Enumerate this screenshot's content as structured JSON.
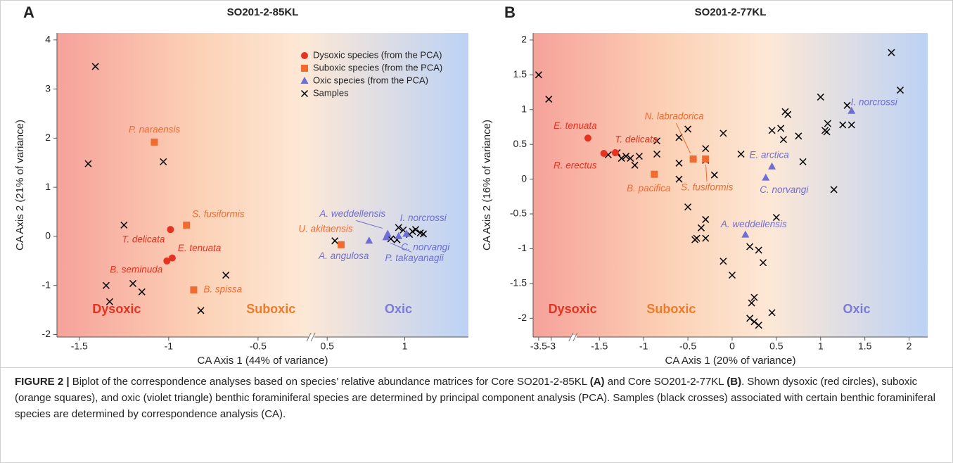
{
  "chart_data": [
    {
      "type": "scatter",
      "panel": "A",
      "title": "SO201-2-85KL",
      "xlabel": "CA Axis 1 (44% of variance)",
      "ylabel": "CA Axis 2 (21% of variance)",
      "xlim": [
        -1.625,
        1.41
      ],
      "xbreak": [
        -0.2,
        0.4
      ],
      "xticks": [
        -1.5,
        -1,
        -0.5,
        0.5,
        1
      ],
      "ylim": [
        -2.05,
        4.14
      ],
      "yticks": [
        -2,
        -1,
        0,
        1,
        2,
        3,
        4
      ],
      "legend": "upper right",
      "regions": [
        {
          "label": "Dysoxic",
          "color": "#e53321"
        },
        {
          "label": "Suboxic",
          "color": "#f07a28"
        },
        {
          "label": "Oxic",
          "color": "#7b7bd6"
        }
      ],
      "series": [
        {
          "name": "Dysoxic species (from the PCA)",
          "marker": "circle",
          "color": "#e53321",
          "x": [
            -0.99,
            -0.98,
            -1.01
          ],
          "values": [
            0.14,
            -0.44,
            -0.5
          ],
          "labels": [
            "T. delicata",
            "E. tenuata",
            "B. seminuda"
          ]
        },
        {
          "name": "Suboxic species (from the PCA)",
          "marker": "square",
          "color": "#f26a30",
          "x": [
            -1.08,
            -0.9,
            -0.86,
            0.59
          ],
          "values": [
            1.92,
            0.23,
            -1.09,
            -0.17
          ],
          "labels": [
            "P. naraensis",
            "S. fusiformis",
            "B. spissa",
            "U. akitaensis"
          ]
        },
        {
          "name": "Oxic species (from the PCA)",
          "marker": "triangle",
          "color": "#6e6ed6",
          "x": [
            0.77,
            0.89,
            0.88,
            0.96,
            1.01
          ],
          "values": [
            -0.09,
            0.05,
            -0.02,
            0.0,
            0.05
          ],
          "labels": [
            "A. angulosa",
            "A. weddellensis",
            "P. takayanagii",
            "C. norvangi",
            "I. norcrossi"
          ]
        },
        {
          "name": "Samples",
          "marker": "x",
          "color": "#000000",
          "x": [
            -1.41,
            -1.45,
            -1.03,
            -1.25,
            -1.35,
            -1.33,
            -1.2,
            -1.15,
            -0.68,
            -0.82,
            0.55,
            0.96,
            0.99,
            1.03,
            1.05,
            1.07,
            1.1,
            1.12,
            0.91,
            0.95
          ],
          "values": [
            3.46,
            1.48,
            1.52,
            0.23,
            -1.0,
            -1.33,
            -0.96,
            -1.13,
            -0.79,
            -1.51,
            -0.09,
            0.18,
            0.13,
            0.04,
            0.1,
            0.14,
            0.07,
            0.05,
            -0.05,
            -0.07
          ]
        }
      ]
    },
    {
      "type": "scatter",
      "panel": "B",
      "title": "SO201-2-77KL",
      "xlabel": "CA Axis 1 (20% of variance)",
      "ylabel": "CA Axis 2 (16% of variance)",
      "xlim": [
        -3.72,
        2.21
      ],
      "xbreak": [
        -2.11,
        -1.79
      ],
      "xticks": [
        -3.5,
        -3,
        -1.5,
        -1,
        -0.5,
        0,
        0.5,
        1,
        1.5,
        2
      ],
      "ylim": [
        -2.27,
        2.1
      ],
      "yticks": [
        -2,
        -1.5,
        -1,
        -0.5,
        0,
        0.5,
        1,
        1.5,
        2
      ],
      "regions": [
        {
          "label": "Dysoxic",
          "color": "#e53321"
        },
        {
          "label": "Suboxic",
          "color": "#f07a28"
        },
        {
          "label": "Oxic",
          "color": "#7b7bd6"
        }
      ],
      "series": [
        {
          "marker": "circle",
          "color": "#e53321",
          "x": [
            -1.63,
            -1.32,
            -1.45
          ],
          "values": [
            0.59,
            0.38,
            0.37
          ],
          "labels": [
            "E. tenuata",
            "T. delicata",
            "R. erectus"
          ]
        },
        {
          "marker": "square",
          "color": "#f26a30",
          "x": [
            -0.88,
            -0.44,
            -0.3
          ],
          "values": [
            0.07,
            0.29,
            0.29
          ],
          "labels": [
            "B. pacifica",
            "N. labradorica",
            "S. fusiformis"
          ]
        },
        {
          "marker": "triangle",
          "color": "#6e6ed6",
          "x": [
            0.45,
            0.38,
            0.15,
            1.35
          ],
          "values": [
            0.18,
            0.02,
            -0.8,
            0.98
          ],
          "labels": [
            "E. arctica",
            "C. norvangi",
            "A. weddellensis",
            "I. norcrossi"
          ]
        },
        {
          "marker": "x",
          "color": "#000000",
          "x": [
            -3.5,
            -3.1,
            -1.4,
            -1.3,
            -1.25,
            -1.2,
            -1.15,
            -1.1,
            -1.05,
            -0.85,
            -0.85,
            -0.6,
            -0.5,
            -0.6,
            -0.6,
            -0.3,
            -0.3,
            -0.2,
            -0.1,
            0.1,
            -0.5,
            -0.35,
            -0.3,
            -0.4,
            -0.42,
            -0.3,
            -0.1,
            0.0,
            0.2,
            0.3,
            0.35,
            0.25,
            0.22,
            0.2,
            0.25,
            0.3,
            0.45,
            0.5,
            0.45,
            0.55,
            0.6,
            0.63,
            0.58,
            0.75,
            0.8,
            1.0,
            1.05,
            1.07,
            1.08,
            1.15,
            1.25,
            1.3,
            1.35,
            1.8,
            1.9
          ],
          "values": [
            1.5,
            1.15,
            0.35,
            0.38,
            0.3,
            0.33,
            0.3,
            0.2,
            0.33,
            0.55,
            0.36,
            0.6,
            0.72,
            0.23,
            0.0,
            0.44,
            0.27,
            0.06,
            0.66,
            0.36,
            -0.4,
            -0.7,
            -0.58,
            -0.85,
            -0.87,
            -0.85,
            -1.18,
            -1.38,
            -0.97,
            -1.02,
            -1.2,
            -1.7,
            -1.78,
            -2.0,
            -2.05,
            -2.1,
            -1.92,
            -0.55,
            0.7,
            0.73,
            0.97,
            0.93,
            0.57,
            0.62,
            0.25,
            1.18,
            0.7,
            0.68,
            0.8,
            -0.15,
            0.78,
            1.06,
            0.78,
            1.82,
            1.28
          ]
        }
      ]
    }
  ],
  "caption": [
    "FIGURE 2 | ",
    "Biplot of the correspondence analyses based on species’ relative abundance matrices for Core SO201-2-85KL ",
    "(A)",
    " and Core SO201-2-77KL ",
    "(B)",
    ". Shown dysoxic (red circles), suboxic (orange squares), and oxic (violet triangle) benthic foraminiferal species are determined by principal component analysis (PCA). Samples (black crosses) associated with certain benthic foraminiferal species are determined by correspondence analysis (CA)."
  ]
}
